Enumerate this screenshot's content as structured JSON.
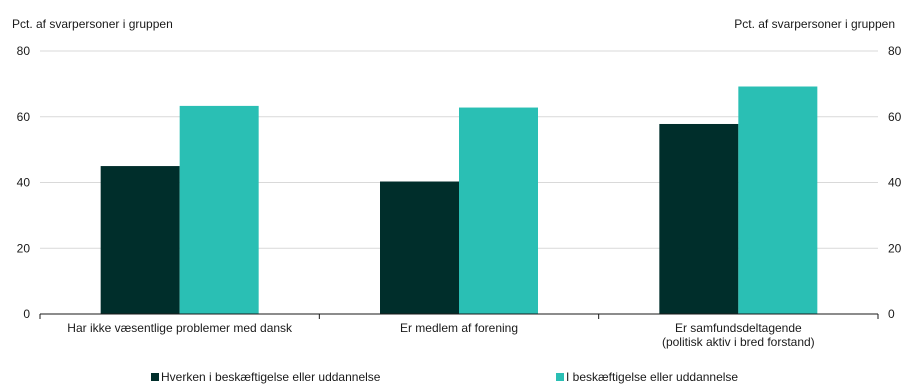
{
  "chart_data": {
    "type": "bar",
    "ylabel_left": "Pct. af svarpersoner i gruppen",
    "ylabel_right": "Pct. af svarpersoner i gruppen",
    "ylim": [
      0,
      80
    ],
    "yticks": [
      0,
      20,
      40,
      60,
      80
    ],
    "grid": true,
    "categories": [
      [
        "Har ikke væsentlige problemer med dansk"
      ],
      [
        "Er medlem af forening"
      ],
      [
        "Er samfundsdeltagende",
        "(politisk aktiv i bred forstand)"
      ]
    ],
    "series": [
      {
        "name": "Hverken i beskæftigelse eller uddannelse",
        "color": "#002e2b",
        "values": [
          45,
          40.3,
          57.8
        ]
      },
      {
        "name": "I beskæftigelse eller uddannelse",
        "color": "#2abfb4",
        "values": [
          63.3,
          62.8,
          69.2
        ]
      }
    ],
    "legend_position": "bottom"
  }
}
